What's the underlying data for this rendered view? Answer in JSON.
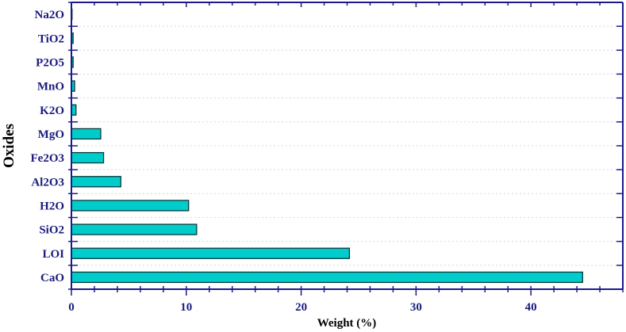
{
  "chart_data": {
    "type": "bar",
    "orientation": "horizontal",
    "title": "",
    "xlabel": "Weight (%)",
    "ylabel": "Oxides",
    "categories": [
      "CaO",
      "LOI",
      "SiO2",
      "H2O",
      "Al2O3",
      "Fe2O3",
      "MgO",
      "K2O",
      "MnO",
      "P2O5",
      "TiO2",
      "Na2O"
    ],
    "values": [
      44.5,
      24.2,
      10.9,
      10.2,
      4.3,
      2.8,
      2.55,
      0.4,
      0.28,
      0.15,
      0.15,
      0.05
    ],
    "xlim": [
      0,
      48
    ],
    "xticks": [
      0,
      10,
      20,
      30,
      40
    ],
    "xminor_step": 2,
    "grid": {
      "horizontal": true,
      "style": "dotted"
    },
    "legend": null,
    "colors": {
      "bar_fill": "#00cccc",
      "bar_edge": "#0a3a3a",
      "axis": "#1b1b8c",
      "label": "#1b1b7e"
    }
  }
}
